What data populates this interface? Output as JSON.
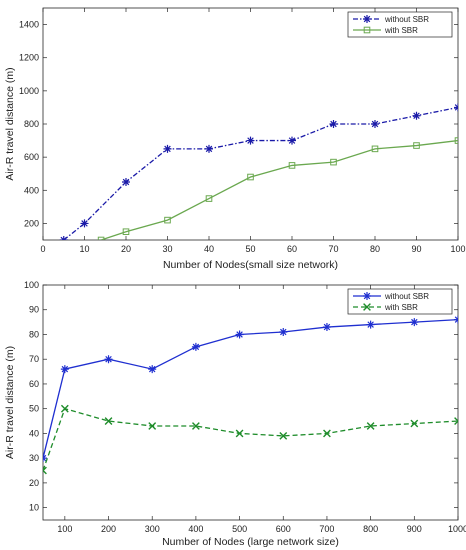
{
  "chart_data": [
    {
      "type": "line",
      "xlabel": "Number of Nodes(small size network)",
      "ylabel": "Air-R travel distance (m)",
      "xlim": [
        0,
        100
      ],
      "ylim": [
        100,
        1500
      ],
      "xticks": [
        0,
        10,
        20,
        30,
        40,
        50,
        60,
        70,
        80,
        90,
        100
      ],
      "yticks": [
        200,
        400,
        600,
        800,
        1000,
        1200,
        1400
      ],
      "grid": false,
      "legend_position": "top-right",
      "series": [
        {
          "name": "without SBR",
          "color": "#1a1aa8",
          "line": "dash-dot",
          "marker": "asterisk",
          "x": [
            5,
            10,
            20,
            30,
            40,
            50,
            60,
            70,
            80,
            90,
            100
          ],
          "y": [
            100,
            200,
            450,
            650,
            650,
            700,
            700,
            800,
            800,
            850,
            900
          ]
        },
        {
          "name": "with SBR",
          "color": "#6aa84f",
          "line": "solid",
          "marker": "square",
          "x": [
            14,
            20,
            30,
            40,
            50,
            60,
            70,
            80,
            90,
            100
          ],
          "y": [
            100,
            150,
            220,
            350,
            480,
            550,
            570,
            650,
            670,
            700
          ]
        }
      ]
    },
    {
      "type": "line",
      "xlabel": "Number of Nodes (large network size)",
      "ylabel": "Air-R travel distance (m)",
      "xlim": [
        50,
        1000
      ],
      "ylim": [
        5,
        100
      ],
      "xticks": [
        100,
        200,
        300,
        400,
        500,
        600,
        700,
        800,
        900,
        1000
      ],
      "yticks": [
        10,
        20,
        30,
        40,
        50,
        60,
        70,
        80,
        90,
        100
      ],
      "grid": false,
      "legend_position": "top-right",
      "series": [
        {
          "name": "without SBR",
          "color": "#1f2fd0",
          "line": "solid",
          "marker": "asterisk",
          "x": [
            50,
            100,
            200,
            300,
            400,
            500,
            600,
            700,
            800,
            900,
            1000
          ],
          "y": [
            30,
            66,
            70,
            66,
            75,
            80,
            81,
            83,
            84,
            85,
            86
          ]
        },
        {
          "name": "with SBR",
          "color": "#1e8c2a",
          "line": "dashed",
          "marker": "x",
          "x": [
            50,
            100,
            200,
            300,
            400,
            500,
            600,
            700,
            800,
            900,
            1000
          ],
          "y": [
            25,
            50,
            45,
            43,
            43,
            40,
            39,
            40,
            43,
            44,
            45
          ]
        }
      ]
    }
  ]
}
